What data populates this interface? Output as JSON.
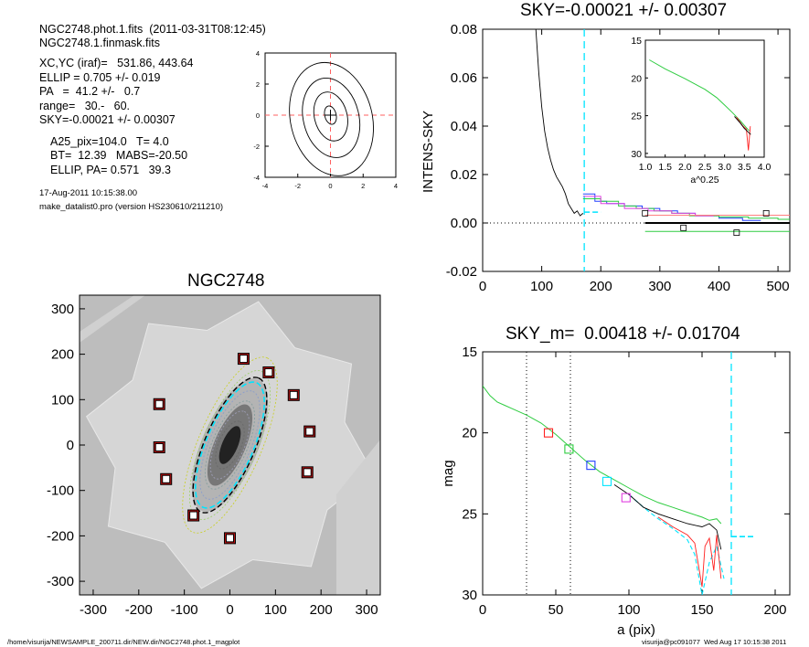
{
  "header": {
    "lines_group1": [
      "NGC2748.phot.1.fits  (2011-03-31T08:12:45)",
      "NGC2748.1.finmask.fits"
    ],
    "lines_group2": [
      "XC,YC (iraf)=   531.86, 443.64",
      "ELLIP = 0.705 +/- 0.019",
      "PA   =  41.2 +/-   0.7",
      "range=   30.-   60.",
      "SKY=-0.00021 +/- 0.00307"
    ],
    "lines_group3": [
      "A25_pix=104.0   T= 4.0",
      "BT=  12.39   MABS=-20.50",
      "ELLIP, PA= 0.571   39.3"
    ],
    "date": "17-Aug-2011 10:15:38.00",
    "program": "make_datalist0.pro (version HS230610/211210)"
  },
  "footer": {
    "path": "/home/visurija/NEWSAMPLE_200711.dir/NEW.dir/NGC2748.phot.1_magplot",
    "user": "visurija@pc091077  Wed Aug 17 10:15:38 2011"
  },
  "colors": {
    "dash": "#00e5ff",
    "green": "#2ecc40",
    "red": "#ff2020",
    "blue": "#2040ff",
    "magenta": "#e040e0",
    "yellow": "#c8d020",
    "galaxy": "#808080"
  },
  "chart_data": [
    {
      "type": "line",
      "panel": "contour",
      "title": "",
      "xticks": [
        "-4",
        "-2",
        "0",
        "2",
        "4"
      ],
      "yticks": [
        "4",
        "2",
        "0",
        "-2",
        "-4"
      ],
      "xlim": [
        -4,
        4
      ],
      "ylim": [
        -4,
        4
      ],
      "contour_semi_axes": [
        [
          0.35,
          0.6
        ],
        [
          1.0,
          1.6
        ],
        [
          1.7,
          2.6
        ],
        [
          2.5,
          3.7
        ]
      ]
    },
    {
      "type": "line",
      "panel": "sky",
      "title": "SKY=-0.00021 +/- 0.00307",
      "ylabel": "INTENS-SKY",
      "xticks": [
        "0",
        "100",
        "200",
        "300",
        "400",
        "500"
      ],
      "yticks": [
        "0.08",
        "0.06",
        "0.04",
        "0.02",
        "0.00",
        "-0.02"
      ],
      "xlim": [
        0,
        520
      ],
      "ylim": [
        -0.02,
        0.08
      ],
      "profile": {
        "x": [
          90,
          95,
          100,
          105,
          110,
          115,
          120,
          125,
          130,
          135,
          140,
          145,
          150,
          155,
          160,
          165,
          170
        ],
        "y": [
          0.08,
          0.062,
          0.048,
          0.038,
          0.031,
          0.026,
          0.022,
          0.019,
          0.017,
          0.015,
          0.012,
          0.008,
          0.006,
          0.004,
          0.005,
          0.003,
          0.004
        ]
      },
      "sky_mean_x": [
        275,
        520
      ],
      "sky_dash_x": 172,
      "step_series": [
        {
          "color": "blue",
          "x": [
            170,
            190,
            210,
            240,
            270,
            300,
            330,
            360,
            400,
            440
          ],
          "y": [
            0.012,
            0.009,
            0.008,
            0.007,
            0.006,
            0.005,
            0.004,
            0.003,
            0.002,
            0.001
          ]
        },
        {
          "color": "green",
          "x": [
            170,
            200,
            230,
            260,
            290,
            320,
            350,
            400,
            450,
            500
          ],
          "y": [
            0.01,
            0.009,
            0.007,
            0.006,
            0.005,
            0.004,
            0.003,
            0.0025,
            0.002,
            0.0015
          ]
        },
        {
          "color": "magenta",
          "x": [
            170,
            200,
            240,
            280,
            320,
            360
          ],
          "y": [
            0.011,
            0.008,
            0.006,
            0.005,
            0.004,
            0.003
          ]
        }
      ],
      "markers": [
        {
          "x": 275,
          "y": 0.004
        },
        {
          "x": 340,
          "y": -0.002
        },
        {
          "x": 430,
          "y": -0.004
        },
        {
          "x": 480,
          "y": 0.004
        }
      ],
      "inset": {
        "xlabel": "a^0.25",
        "xticks": [
          "1.0",
          "1.5",
          "2.0",
          "2.5",
          "3.0",
          "3.5",
          "4.0"
        ],
        "yticks": [
          "15",
          "20",
          "25",
          "30"
        ],
        "xlim": [
          1.0,
          4.0
        ],
        "ylim": [
          15,
          30.5
        ],
        "curve": {
          "x": [
            1.1,
            1.5,
            2.0,
            2.5,
            2.8,
            3.0,
            3.2,
            3.4,
            3.55,
            3.62
          ],
          "y": [
            17.6,
            18.8,
            20.1,
            21.5,
            22.6,
            23.6,
            24.6,
            25.7,
            26.6,
            27.0
          ]
        }
      }
    },
    {
      "type": "scatter",
      "panel": "image",
      "title": "NGC2748",
      "xticks": [
        "-300",
        "-200",
        "-100",
        "0",
        "100",
        "200",
        "300"
      ],
      "yticks": [
        "300",
        "200",
        "100",
        "0",
        "-100",
        "-200",
        "-300"
      ],
      "xlim": [
        -330,
        330
      ],
      "ylim": [
        -330,
        330
      ],
      "stars": [
        [
          -155,
          90
        ],
        [
          -155,
          -5
        ],
        [
          -140,
          -75
        ],
        [
          -80,
          -155
        ],
        [
          0,
          -205
        ],
        [
          30,
          190
        ],
        [
          85,
          160
        ],
        [
          140,
          110
        ],
        [
          175,
          30
        ],
        [
          170,
          -60
        ]
      ],
      "galaxy": {
        "pa": 41.2,
        "ellip": 0.705,
        "a": 160
      }
    },
    {
      "type": "line",
      "panel": "mag",
      "title": "SKY_m=  0.00418 +/- 0.01704",
      "xlabel": "a (pix)",
      "ylabel": "mag",
      "xticks": [
        "0",
        "50",
        "100",
        "150",
        "200"
      ],
      "yticks": [
        "15",
        "20",
        "25",
        "30"
      ],
      "xlim": [
        0,
        210
      ],
      "ylim": [
        15,
        30
      ],
      "vlines_dotted": [
        30,
        60
      ],
      "vline_dash": 170,
      "green": {
        "x": [
          0,
          5,
          10,
          15,
          20,
          30,
          40,
          50,
          60,
          70,
          80,
          90,
          100,
          110,
          120,
          130,
          140,
          150,
          155,
          160,
          163
        ],
        "y": [
          17.1,
          17.7,
          18.1,
          18.3,
          18.5,
          18.9,
          19.4,
          20.1,
          20.9,
          21.7,
          22.4,
          22.9,
          23.4,
          23.9,
          24.3,
          24.6,
          24.9,
          25.2,
          25.4,
          25.3,
          25.6
        ]
      },
      "black": {
        "x": [
          90,
          100,
          110,
          120,
          130,
          140,
          150,
          155,
          160,
          163
        ],
        "y": [
          23.2,
          23.8,
          24.6,
          25.0,
          25.3,
          25.6,
          25.8,
          25.6,
          26.0,
          27.2
        ]
      },
      "red": {
        "x": [
          120,
          130,
          140,
          145,
          150,
          152,
          155,
          158,
          160,
          163
        ],
        "y": [
          25.2,
          25.8,
          26.3,
          26.8,
          29.5,
          27.0,
          26.5,
          28.5,
          26.3,
          29.0
        ]
      },
      "cyan": {
        "x": [
          100,
          110,
          120,
          130,
          140,
          145,
          150,
          155,
          160,
          165
        ],
        "y": [
          23.8,
          24.6,
          25.3,
          25.9,
          26.6,
          27.5,
          30,
          28.0,
          27.0,
          29.0
        ]
      },
      "sky_level": {
        "x": [
          170,
          185
        ],
        "y": 26.4
      },
      "markers": [
        {
          "x": 45,
          "y": 20,
          "color": "red"
        },
        {
          "x": 59,
          "y": 21,
          "color": "green"
        },
        {
          "x": 74,
          "y": 22,
          "color": "blue"
        },
        {
          "x": 85,
          "y": 23,
          "color": "cyan"
        },
        {
          "x": 98,
          "y": 24,
          "color": "magenta"
        }
      ]
    }
  ]
}
